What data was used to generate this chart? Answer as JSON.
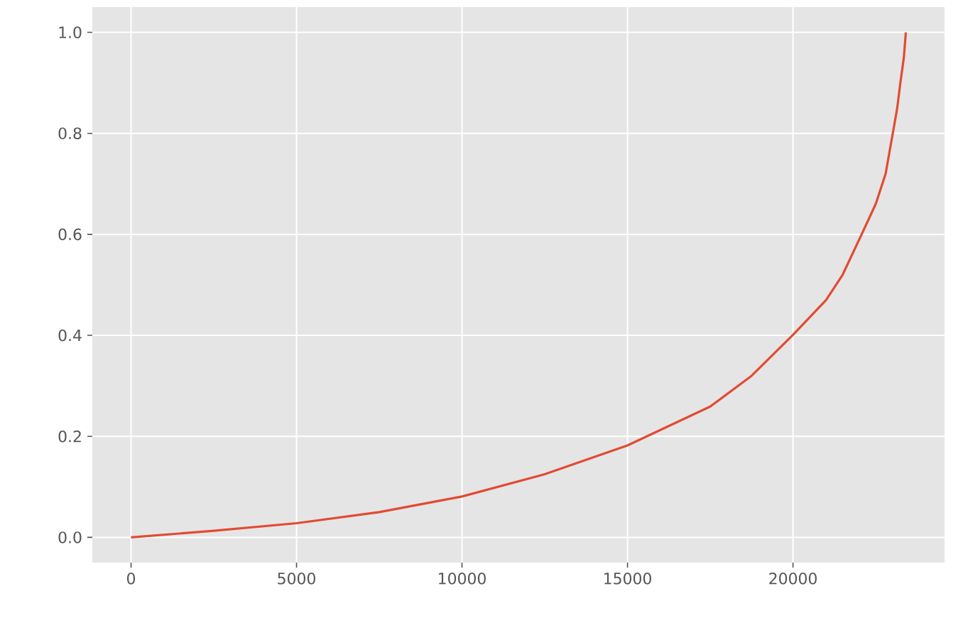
{
  "chart_data": {
    "type": "line",
    "x": [
      0,
      2500,
      5000,
      7500,
      10000,
      12500,
      15000,
      17500,
      18750,
      20000,
      21000,
      21500,
      22075,
      22500,
      22800,
      23016,
      23150,
      23245,
      23350,
      23410
    ],
    "series": [
      {
        "color": "#e24a33",
        "values": [
          0,
          0.013,
          0.028,
          0.05,
          0.081,
          0.125,
          0.182,
          0.259,
          0.32,
          0.401,
          0.47,
          0.52,
          0.6,
          0.66,
          0.72,
          0.8,
          0.85,
          0.9,
          0.95,
          1.0
        ]
      }
    ],
    "xlim": [
      -1170,
      24580
    ],
    "ylim": [
      -0.05,
      1.05
    ],
    "xticks": [
      0,
      5000,
      10000,
      15000,
      20000
    ],
    "yticks": [
      {
        "value": 0,
        "label": "0.0"
      },
      {
        "value": 0.2,
        "label": "0.2"
      },
      {
        "value": 0.4,
        "label": "0.4"
      },
      {
        "value": 0.6,
        "label": "0.6"
      },
      {
        "value": 0.8,
        "label": "0.8"
      },
      {
        "value": 1.0,
        "label": "1.0"
      }
    ],
    "grid": true,
    "marker": "none",
    "line_style": "solid"
  }
}
